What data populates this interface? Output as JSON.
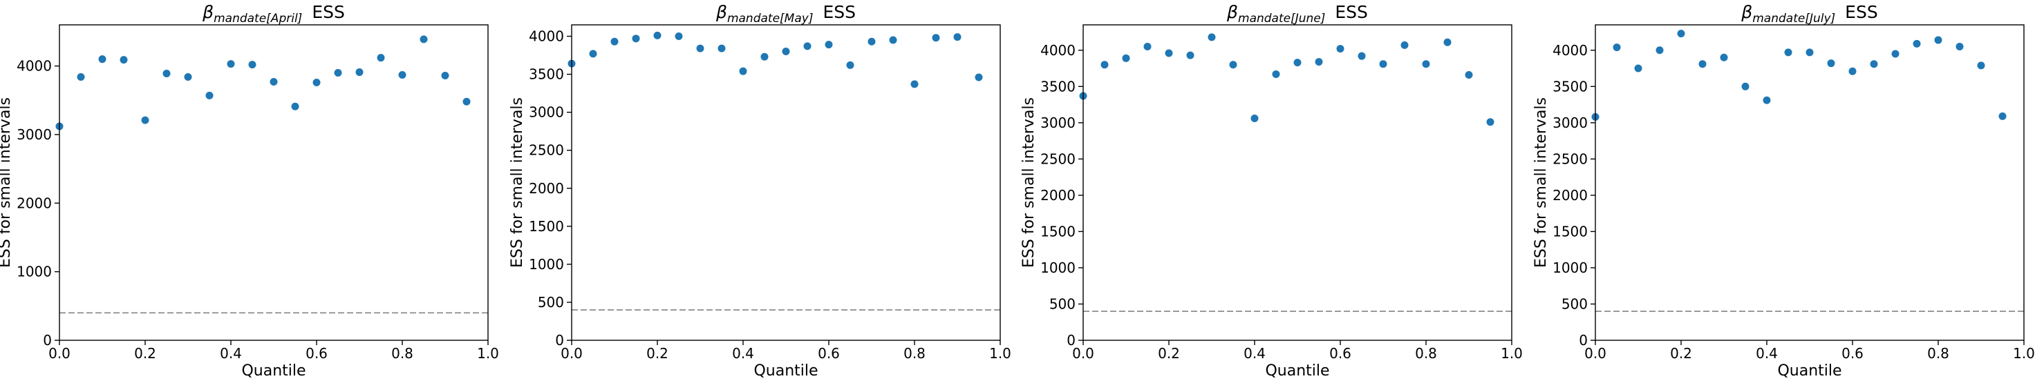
{
  "chart_data": [
    {
      "type": "scatter",
      "title_symbol": "β",
      "title_subscript": "mandate[April]",
      "title_suffix": "ESS",
      "xlabel": "Quantile",
      "ylabel": "ESS for small intervals",
      "xlim": [
        0,
        1
      ],
      "ylim": [
        0,
        4600
      ],
      "xticks": [
        "0.0",
        "0.2",
        "0.4",
        "0.6",
        "0.8",
        "1.0"
      ],
      "yticks": [
        0,
        1000,
        2000,
        3000,
        4000
      ],
      "reference_line": 400,
      "x": [
        0.0,
        0.05,
        0.1,
        0.15,
        0.2,
        0.25,
        0.3,
        0.35,
        0.4,
        0.45,
        0.5,
        0.55,
        0.6,
        0.65,
        0.7,
        0.75,
        0.8,
        0.85,
        0.9,
        0.95
      ],
      "y": [
        3120,
        3840,
        4100,
        4090,
        3210,
        3890,
        3840,
        3570,
        4030,
        4020,
        3770,
        3410,
        3760,
        3900,
        3910,
        4120,
        3870,
        4390,
        3860,
        3480
      ]
    },
    {
      "type": "scatter",
      "title_symbol": "β",
      "title_subscript": "mandate[May]",
      "title_suffix": "ESS",
      "xlabel": "Quantile",
      "ylabel": "ESS for small intervals",
      "xlim": [
        0,
        1
      ],
      "ylim": [
        0,
        4150
      ],
      "xticks": [
        "0.0",
        "0.2",
        "0.4",
        "0.6",
        "0.8",
        "1.0"
      ],
      "yticks": [
        0,
        500,
        1000,
        1500,
        2000,
        2500,
        3000,
        3500,
        4000
      ],
      "reference_line": 400,
      "x": [
        0.0,
        0.05,
        0.1,
        0.15,
        0.2,
        0.25,
        0.3,
        0.35,
        0.4,
        0.45,
        0.5,
        0.55,
        0.6,
        0.65,
        0.7,
        0.75,
        0.8,
        0.85,
        0.9,
        0.95
      ],
      "y": [
        3640,
        3770,
        3930,
        3970,
        4010,
        4000,
        3840,
        3840,
        3540,
        3730,
        3800,
        3870,
        3890,
        3620,
        3930,
        3950,
        3370,
        3980,
        3990,
        3460
      ]
    },
    {
      "type": "scatter",
      "title_symbol": "β",
      "title_subscript": "mandate[June]",
      "title_suffix": "ESS",
      "xlabel": "Quantile",
      "ylabel": "ESS for small intervals",
      "xlim": [
        0,
        1
      ],
      "ylim": [
        0,
        4350
      ],
      "xticks": [
        "0.0",
        "0.2",
        "0.4",
        "0.6",
        "0.8",
        "1.0"
      ],
      "yticks": [
        0,
        500,
        1000,
        1500,
        2000,
        2500,
        3000,
        3500,
        4000
      ],
      "reference_line": 400,
      "x": [
        0.0,
        0.05,
        0.1,
        0.15,
        0.2,
        0.25,
        0.3,
        0.35,
        0.4,
        0.45,
        0.5,
        0.55,
        0.6,
        0.65,
        0.7,
        0.75,
        0.8,
        0.85,
        0.9,
        0.95
      ],
      "y": [
        3370,
        3800,
        3890,
        4050,
        3960,
        3930,
        4180,
        3800,
        3060,
        3670,
        3830,
        3840,
        4020,
        3920,
        3810,
        4070,
        3810,
        4110,
        3660,
        3010
      ]
    },
    {
      "type": "scatter",
      "title_symbol": "β",
      "title_subscript": "mandate[July]",
      "title_suffix": "ESS",
      "xlabel": "Quantile",
      "ylabel": "ESS for small intervals",
      "xlim": [
        0,
        1
      ],
      "ylim": [
        0,
        4350
      ],
      "xticks": [
        "0.0",
        "0.2",
        "0.4",
        "0.6",
        "0.8",
        "1.0"
      ],
      "yticks": [
        0,
        500,
        1000,
        1500,
        2000,
        2500,
        3000,
        3500,
        4000
      ],
      "reference_line": 400,
      "x": [
        0.0,
        0.05,
        0.1,
        0.15,
        0.2,
        0.25,
        0.3,
        0.35,
        0.4,
        0.45,
        0.5,
        0.55,
        0.6,
        0.65,
        0.7,
        0.75,
        0.8,
        0.85,
        0.9,
        0.95
      ],
      "y": [
        3080,
        4040,
        3750,
        4000,
        4230,
        3810,
        3900,
        3500,
        3310,
        3970,
        3970,
        3820,
        3710,
        3810,
        3950,
        4090,
        4140,
        4050,
        3790,
        3090
      ]
    }
  ],
  "colors": {
    "points": "#1f77b4",
    "reference_line": "#999999",
    "axes": "#000000"
  }
}
